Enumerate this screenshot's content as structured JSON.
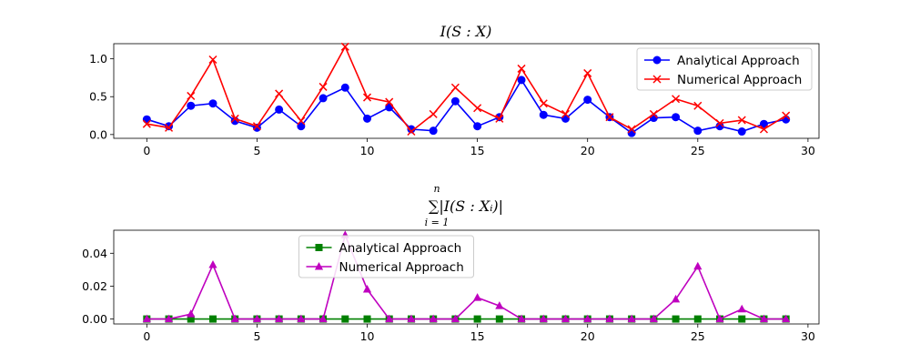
{
  "chart_data": [
    {
      "type": "line",
      "title": "I(S : X)",
      "x": [
        0,
        1,
        2,
        3,
        4,
        5,
        6,
        7,
        8,
        9,
        10,
        11,
        12,
        13,
        14,
        15,
        16,
        17,
        18,
        19,
        20,
        21,
        22,
        23,
        24,
        25,
        26,
        27,
        28,
        29
      ],
      "xticks": [
        0,
        5,
        10,
        15,
        20,
        25,
        30
      ],
      "yticks": [
        0.0,
        0.5,
        1.0
      ],
      "ytick_labels": [
        "0.0",
        "0.5",
        "1.0"
      ],
      "xlim": [
        -1.5,
        30.5
      ],
      "ylim": [
        -0.05,
        1.2
      ],
      "grid": false,
      "legend_position": "upper-right",
      "series": [
        {
          "name": "Analytical Approach",
          "color": "#0000ff",
          "marker": "circle",
          "values": [
            0.2,
            0.11,
            0.38,
            0.41,
            0.18,
            0.09,
            0.33,
            0.11,
            0.48,
            0.62,
            0.21,
            0.36,
            0.07,
            0.05,
            0.44,
            0.11,
            0.23,
            0.72,
            0.26,
            0.21,
            0.46,
            0.23,
            0.02,
            0.22,
            0.23,
            0.05,
            0.11,
            0.04,
            0.14,
            0.2
          ]
        },
        {
          "name": "Numerical Approach",
          "color": "#ff0000",
          "marker": "x",
          "values": [
            0.14,
            0.09,
            0.51,
            0.99,
            0.21,
            0.11,
            0.54,
            0.18,
            0.63,
            1.16,
            0.49,
            0.43,
            0.04,
            0.27,
            0.62,
            0.35,
            0.21,
            0.87,
            0.41,
            0.27,
            0.81,
            0.23,
            0.07,
            0.27,
            0.47,
            0.38,
            0.15,
            0.19,
            0.07,
            0.25
          ]
        }
      ]
    },
    {
      "type": "line",
      "title_main": "∑|I(S : Xᵢ)|",
      "title_upper": "n",
      "title_lower": "i = 1",
      "x": [
        0,
        1,
        2,
        3,
        4,
        5,
        6,
        7,
        8,
        9,
        10,
        11,
        12,
        13,
        14,
        15,
        16,
        17,
        18,
        19,
        20,
        21,
        22,
        23,
        24,
        25,
        26,
        27,
        28,
        29
      ],
      "xticks": [
        0,
        5,
        10,
        15,
        20,
        25,
        30
      ],
      "yticks": [
        0.0,
        0.02,
        0.04
      ],
      "ytick_labels": [
        "0.00",
        "0.02",
        "0.04"
      ],
      "xlim": [
        -1.5,
        30.5
      ],
      "ylim": [
        -0.003,
        0.054
      ],
      "grid": false,
      "legend_position": "upper-center",
      "series": [
        {
          "name": "Analytical Approach",
          "color": "#008000",
          "marker": "square",
          "values": [
            0,
            0,
            0,
            0,
            0,
            0,
            0,
            0,
            0,
            0,
            0,
            0,
            0,
            0,
            0,
            0,
            0,
            0,
            0,
            0,
            0,
            0,
            0,
            0,
            0,
            0,
            0,
            0,
            0,
            0
          ]
        },
        {
          "name": "Numerical Approach",
          "color": "#bf00bf",
          "marker": "triangle",
          "values": [
            0,
            0,
            0.003,
            0.033,
            0,
            0,
            0,
            0,
            0,
            0.051,
            0.018,
            0,
            0,
            0,
            0,
            0.013,
            0.008,
            0,
            0,
            0,
            0,
            0,
            0,
            0,
            0.012,
            0.032,
            0,
            0.006,
            0,
            0
          ]
        }
      ]
    }
  ]
}
